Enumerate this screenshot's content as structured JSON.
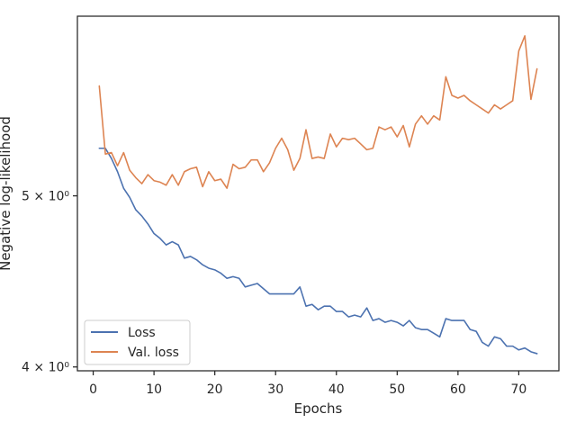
{
  "chart_data": {
    "type": "line",
    "xlabel": "Epochs",
    "ylabel": "Negative log-likelihood",
    "yscale": "log",
    "xlim": [
      -2.6,
      76.6
    ],
    "ylim": [
      3.98,
      6.32
    ],
    "xticks": [
      {
        "value": 0,
        "label": "0"
      },
      {
        "value": 10,
        "label": "10"
      },
      {
        "value": 20,
        "label": "20"
      },
      {
        "value": 30,
        "label": "30"
      },
      {
        "value": 40,
        "label": "40"
      },
      {
        "value": 50,
        "label": "50"
      },
      {
        "value": 60,
        "label": "60"
      },
      {
        "value": 70,
        "label": "70"
      }
    ],
    "yticks": [
      {
        "value": 4,
        "label": "4 × 10⁰"
      },
      {
        "value": 5,
        "label": "5 × 10⁰"
      }
    ],
    "grid": false,
    "legend_position": "lower-left",
    "series": [
      {
        "name": "Loss",
        "color": "#4c72b0",
        "x": [
          1,
          2,
          3,
          4,
          5,
          6,
          7,
          8,
          9,
          10,
          11,
          12,
          13,
          14,
          15,
          16,
          17,
          18,
          19,
          20,
          21,
          22,
          23,
          24,
          25,
          26,
          27,
          28,
          29,
          30,
          31,
          32,
          33,
          34,
          35,
          36,
          37,
          38,
          39,
          40,
          41,
          42,
          43,
          44,
          45,
          46,
          47,
          48,
          49,
          50,
          51,
          52,
          53,
          54,
          55,
          56,
          57,
          58,
          59,
          60,
          61,
          62,
          63,
          64,
          65,
          66,
          67,
          68,
          69,
          70,
          71,
          72,
          73
        ],
        "values": [
          5.32,
          5.32,
          5.25,
          5.16,
          5.05,
          4.99,
          4.91,
          4.87,
          4.82,
          4.76,
          4.73,
          4.69,
          4.71,
          4.69,
          4.61,
          4.62,
          4.6,
          4.57,
          4.55,
          4.54,
          4.52,
          4.49,
          4.5,
          4.49,
          4.44,
          4.45,
          4.46,
          4.43,
          4.4,
          4.4,
          4.4,
          4.4,
          4.4,
          4.44,
          4.33,
          4.34,
          4.31,
          4.33,
          4.33,
          4.3,
          4.3,
          4.27,
          4.28,
          4.27,
          4.32,
          4.25,
          4.26,
          4.24,
          4.25,
          4.24,
          4.22,
          4.25,
          4.21,
          4.2,
          4.2,
          4.18,
          4.16,
          4.26,
          4.25,
          4.25,
          4.25,
          4.2,
          4.19,
          4.13,
          4.11,
          4.16,
          4.15,
          4.11,
          4.11,
          4.09,
          4.1,
          4.08,
          4.07
        ]
      },
      {
        "name": "Val. loss",
        "color": "#dd8452",
        "x": [
          1,
          2,
          3,
          4,
          5,
          6,
          7,
          8,
          9,
          10,
          11,
          12,
          13,
          14,
          15,
          16,
          17,
          18,
          19,
          20,
          21,
          22,
          23,
          24,
          25,
          26,
          27,
          28,
          29,
          30,
          31,
          32,
          33,
          34,
          35,
          36,
          37,
          38,
          39,
          40,
          41,
          42,
          43,
          44,
          45,
          46,
          47,
          48,
          49,
          50,
          51,
          52,
          53,
          54,
          55,
          56,
          57,
          58,
          59,
          60,
          61,
          62,
          63,
          64,
          65,
          66,
          67,
          68,
          69,
          70,
          71,
          72,
          73
        ],
        "values": [
          5.77,
          5.28,
          5.29,
          5.2,
          5.29,
          5.17,
          5.12,
          5.08,
          5.14,
          5.1,
          5.09,
          5.07,
          5.14,
          5.07,
          5.16,
          5.18,
          5.19,
          5.06,
          5.16,
          5.1,
          5.11,
          5.05,
          5.21,
          5.18,
          5.19,
          5.24,
          5.24,
          5.16,
          5.22,
          5.32,
          5.39,
          5.31,
          5.17,
          5.25,
          5.45,
          5.25,
          5.26,
          5.25,
          5.42,
          5.33,
          5.39,
          5.38,
          5.39,
          5.35,
          5.31,
          5.32,
          5.47,
          5.45,
          5.47,
          5.4,
          5.48,
          5.33,
          5.49,
          5.55,
          5.49,
          5.55,
          5.52,
          5.84,
          5.7,
          5.68,
          5.7,
          5.66,
          5.63,
          5.6,
          5.57,
          5.63,
          5.6,
          5.63,
          5.66,
          6.04,
          6.16,
          5.67,
          5.9
        ]
      }
    ]
  }
}
